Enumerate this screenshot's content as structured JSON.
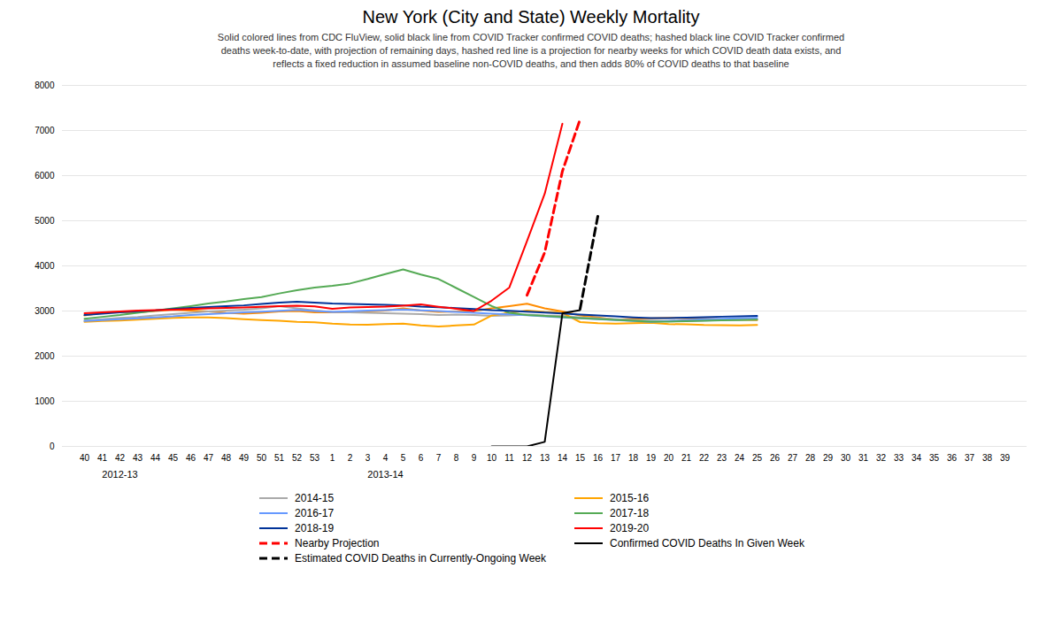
{
  "chart_data": {
    "type": "line",
    "title": "New York (City and State) Weekly Mortality",
    "subtitle": "Solid colored lines from CDC FluView, solid black line from COVID Tracker confirmed COVID deaths; hashed black line COVID Tracker confirmed\ndeaths week-to-date, with projection of remaining days, hashed red line is a projection for nearby weeks for which COVID death data exists, and\nreflects a fixed reduction in assumed baseline non-COVID deaths, and then adds 80% of COVID deaths to that baseline",
    "categories": [
      "40",
      "41",
      "42",
      "43",
      "44",
      "45",
      "46",
      "47",
      "48",
      "49",
      "50",
      "51",
      "52",
      "53",
      "1",
      "2",
      "3",
      "4",
      "5",
      "6",
      "7",
      "8",
      "9",
      "10",
      "11",
      "12",
      "13",
      "14",
      "15",
      "16",
      "17",
      "18",
      "19",
      "20",
      "21",
      "22",
      "23",
      "24",
      "25",
      "26",
      "27",
      "28",
      "29",
      "30",
      "31",
      "32",
      "33",
      "34",
      "35",
      "36",
      "37",
      "38",
      "39"
    ],
    "series": [
      {
        "color": "#FF8C00",
        "line_style": "solid",
        "values": [
          2900,
          2960,
          2980,
          2970,
          3000,
          3030,
          3010,
          2990,
          2960,
          2940,
          2960,
          2990,
          3000,
          2970,
          2970,
          2970,
          2990,
          3010,
          3060,
          3010,
          2980,
          2990,
          3000,
          3060,
          3110,
          3160,
          3060,
          2990,
          2900,
          2860,
          2810,
          2830,
          2840,
          2850,
          2840,
          2830,
          2820,
          2810,
          2800,
          null,
          null,
          null,
          null,
          null,
          null,
          null,
          null,
          null,
          null,
          null,
          null,
          null,
          null
        ]
      },
      {
        "name": "2014-15",
        "color": "#AAAAAA",
        "line_style": "solid",
        "values": [
          2790,
          2820,
          2850,
          2870,
          2900,
          2930,
          2960,
          2990,
          3010,
          3030,
          3060,
          3110,
          3060,
          3010,
          2980,
          2970,
          2960,
          2950,
          2940,
          2930,
          2910,
          2920,
          2910,
          2890,
          2900,
          2920,
          2900,
          2890,
          2860,
          2840,
          2820,
          2800,
          2785,
          2775,
          2780,
          2790,
          2800,
          2810,
          2820,
          null,
          null,
          null,
          null,
          null,
          null,
          null,
          null,
          null,
          null,
          null,
          null,
          null,
          null
        ]
      },
      {
        "name": "2015-16",
        "color": "#FFA500",
        "line_style": "solid",
        "values": [
          2760,
          2780,
          2790,
          2810,
          2830,
          2850,
          2860,
          2860,
          2845,
          2820,
          2800,
          2785,
          2760,
          2750,
          2720,
          2700,
          2695,
          2710,
          2720,
          2680,
          2655,
          2680,
          2700,
          2900,
          2960,
          3010,
          2980,
          2960,
          2755,
          2730,
          2720,
          2730,
          2740,
          2710,
          2705,
          2690,
          2685,
          2680,
          2690,
          null,
          null,
          null,
          null,
          null,
          null,
          null,
          null,
          null,
          null,
          null,
          null,
          null,
          null
        ]
      },
      {
        "name": "2016-17",
        "color": "#6699FF",
        "line_style": "solid",
        "values": [
          2780,
          2800,
          2820,
          2840,
          2860,
          2880,
          2910,
          2930,
          2950,
          2970,
          2985,
          3005,
          3025,
          3000,
          2980,
          2995,
          3010,
          3020,
          3035,
          3015,
          3000,
          2980,
          2960,
          2940,
          2925,
          2905,
          2880,
          2860,
          2840,
          2820,
          2800,
          2780,
          2760,
          2780,
          2800,
          2820,
          2830,
          2840,
          2850,
          null,
          null,
          null,
          null,
          null,
          null,
          null,
          null,
          null,
          null,
          null,
          null,
          null,
          null
        ]
      },
      {
        "name": "2017-18",
        "color": "#55AA55",
        "line_style": "solid",
        "values": [
          2830,
          2870,
          2910,
          2960,
          3010,
          3060,
          3110,
          3165,
          3210,
          3265,
          3310,
          3390,
          3460,
          3520,
          3560,
          3610,
          3710,
          3820,
          3920,
          3810,
          3710,
          3510,
          3310,
          3110,
          2960,
          2910,
          2890,
          2870,
          2845,
          2825,
          2805,
          2785,
          2765,
          2765,
          2775,
          2785,
          2795,
          2800,
          2810,
          null,
          null,
          null,
          null,
          null,
          null,
          null,
          null,
          null,
          null,
          null,
          null,
          null,
          null
        ]
      },
      {
        "name": "2018-19",
        "color": "#003399",
        "line_style": "solid",
        "values": [
          2910,
          2940,
          2970,
          2995,
          3015,
          3045,
          3070,
          3090,
          3110,
          3125,
          3155,
          3185,
          3205,
          3185,
          3165,
          3155,
          3145,
          3135,
          3125,
          3100,
          3085,
          3065,
          3045,
          3020,
          3005,
          2985,
          2965,
          2945,
          2920,
          2900,
          2880,
          2860,
          2845,
          2845,
          2855,
          2865,
          2875,
          2880,
          2890,
          null,
          null,
          null,
          null,
          null,
          null,
          null,
          null,
          null,
          null,
          null,
          null,
          null,
          null
        ]
      },
      {
        "name": "2019-20",
        "color": "#FF0000",
        "line_style": "solid",
        "values": [
          2950,
          2970,
          2990,
          3010,
          3020,
          3030,
          3045,
          3060,
          3070,
          3080,
          3095,
          3110,
          3120,
          3105,
          3050,
          3080,
          3090,
          3100,
          3120,
          3145,
          3095,
          3050,
          3000,
          3230,
          3520,
          4550,
          5600,
          7150,
          null,
          null,
          null,
          null,
          null,
          null,
          null,
          null,
          null,
          null,
          null,
          null,
          null,
          null,
          null,
          null,
          null,
          null,
          null,
          null,
          null,
          null,
          null,
          null,
          null
        ]
      },
      {
        "name": "Nearby Projection",
        "color": "#FF0000",
        "line_style": "dashed",
        "values": [
          null,
          null,
          null,
          null,
          null,
          null,
          null,
          null,
          null,
          null,
          null,
          null,
          null,
          null,
          null,
          null,
          null,
          null,
          null,
          null,
          null,
          null,
          null,
          null,
          null,
          3350,
          4300,
          6100,
          7250,
          null,
          null,
          null,
          null,
          null,
          null,
          null,
          null,
          null,
          null,
          null,
          null,
          null,
          null,
          null,
          null,
          null,
          null,
          null,
          null,
          null,
          null,
          null,
          null
        ]
      },
      {
        "name": "Confirmed COVID Deaths In Given Week",
        "color": "black",
        "line_style": "solid",
        "values": [
          null,
          null,
          null,
          null,
          null,
          null,
          null,
          null,
          null,
          null,
          null,
          null,
          null,
          null,
          null,
          null,
          null,
          null,
          null,
          null,
          null,
          null,
          null,
          0,
          0,
          0,
          100,
          2950,
          3020,
          null,
          null,
          null,
          null,
          null,
          null,
          null,
          null,
          null,
          null,
          null,
          null,
          null,
          null,
          null,
          null,
          null,
          null,
          null,
          null,
          null,
          null,
          null,
          null
        ]
      },
      {
        "name": "Estimated COVID Deaths in Currently-Ongoing Week",
        "color": "black",
        "line_style": "dashed",
        "values": [
          null,
          null,
          null,
          null,
          null,
          null,
          null,
          null,
          null,
          null,
          null,
          null,
          null,
          null,
          null,
          null,
          null,
          null,
          null,
          null,
          null,
          null,
          null,
          null,
          null,
          null,
          null,
          null,
          3050,
          5100,
          null,
          null,
          null,
          null,
          null,
          null,
          null,
          null,
          null,
          null,
          null,
          null,
          null,
          null,
          null,
          null,
          null,
          null,
          null,
          null,
          null,
          null,
          null
        ]
      }
    ],
    "annotations": [
      {
        "text": "2012-13",
        "x": "42"
      },
      {
        "text": "2013-14",
        "x": "4"
      }
    ],
    "ylim": [
      0,
      8000
    ],
    "yticks": [
      0,
      1000,
      2000,
      3000,
      4000,
      5000,
      6000,
      7000,
      8000
    ],
    "grid": true
  }
}
